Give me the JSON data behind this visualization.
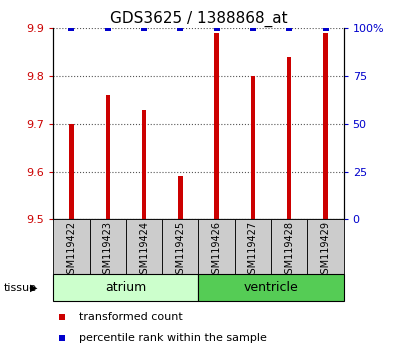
{
  "title": "GDS3625 / 1388868_at",
  "samples": [
    "GSM119422",
    "GSM119423",
    "GSM119424",
    "GSM119425",
    "GSM119426",
    "GSM119427",
    "GSM119428",
    "GSM119429"
  ],
  "bar_values": [
    9.7,
    9.76,
    9.73,
    9.59,
    9.89,
    9.8,
    9.84,
    9.89
  ],
  "bar_base": 9.5,
  "percentile_values": [
    100,
    100,
    100,
    100,
    100,
    100,
    100,
    100
  ],
  "ylim_left": [
    9.5,
    9.9
  ],
  "ylim_right": [
    0,
    100
  ],
  "yticks_left": [
    9.5,
    9.6,
    9.7,
    9.8,
    9.9
  ],
  "yticks_right": [
    0,
    25,
    50,
    75,
    100
  ],
  "bar_color": "#cc0000",
  "percentile_color": "#0000cc",
  "grid_color": "#555555",
  "tissue_groups": [
    {
      "label": "atrium",
      "start": 0,
      "end": 3,
      "color": "#ccffcc"
    },
    {
      "label": "ventricle",
      "start": 4,
      "end": 7,
      "color": "#55cc55"
    }
  ],
  "tissue_label": "tissue",
  "sample_bg_color": "#cccccc",
  "legend_red_label": "transformed count",
  "legend_blue_label": "percentile rank within the sample",
  "bar_width": 0.12,
  "title_fontsize": 11,
  "tick_fontsize": 8,
  "sample_fontsize": 7,
  "tissue_fontsize": 9,
  "legend_fontsize": 8
}
